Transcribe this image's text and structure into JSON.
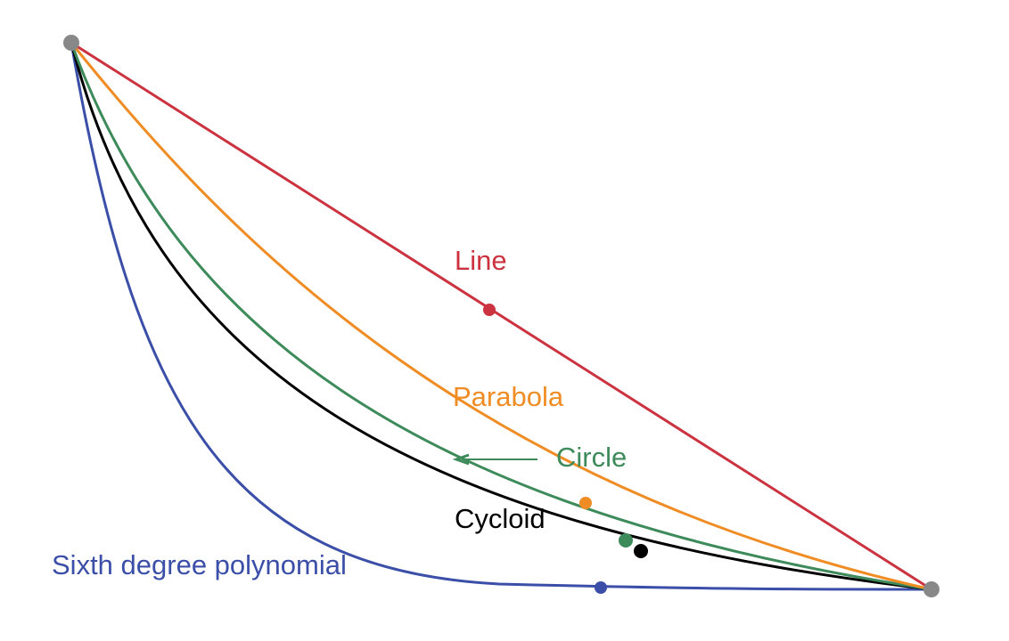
{
  "curves": [
    {
      "label": "Line"
    },
    {
      "label": "Parabola"
    },
    {
      "label": "Circle"
    },
    {
      "label": "Cycloid"
    },
    {
      "label": "Sixth degree polynomial"
    }
  ]
}
